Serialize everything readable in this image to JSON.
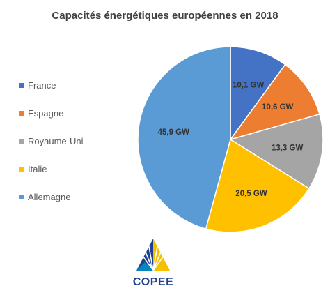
{
  "chart_data": {
    "type": "pie",
    "title": "Capacités énergétiques européennes en 2018",
    "categories": [
      "France",
      "Espagne",
      "Royaume-Uni",
      "Italie",
      "Allemagne"
    ],
    "values": [
      10.1,
      10.6,
      13.3,
      20.5,
      45.9
    ],
    "data_labels": [
      "10,1 GW",
      "10,6 GW",
      "13,3 GW",
      "20,5 GW",
      "45,9 GW"
    ],
    "colors": [
      "#4472c4",
      "#ed7d31",
      "#a5a5a5",
      "#ffc000",
      "#5b9bd5"
    ],
    "legend": "left"
  },
  "logo": {
    "text": "COPEE",
    "colors": [
      "#1f3f8f",
      "#f5c000",
      "#0094c9"
    ]
  }
}
